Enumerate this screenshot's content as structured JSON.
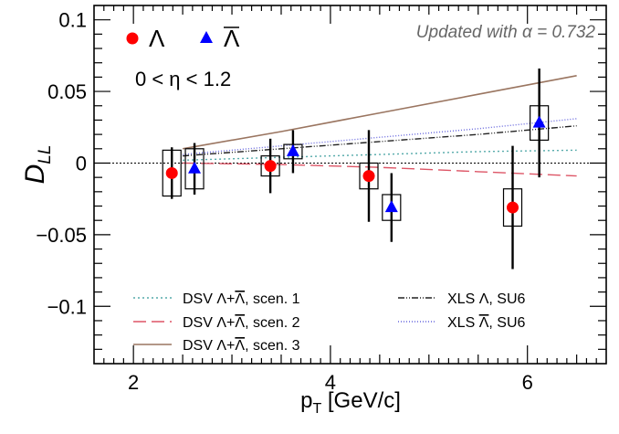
{
  "chart_data": {
    "type": "scatter",
    "title": "",
    "annotation": "Updated with α = 0.732",
    "eta_label": "0 < η < 1.2",
    "xlabel_main": "p",
    "xlabel_sub": "T",
    "xlabel_rest": " [GeV/c]",
    "ylabel_main": "D",
    "ylabel_sub": "LL",
    "xlim": [
      1.6,
      6.8
    ],
    "ylim": [
      -0.14,
      0.11
    ],
    "x_ticks": [
      2,
      4,
      6
    ],
    "x_tick_labels": [
      "2",
      "4",
      "6"
    ],
    "y_ticks": [
      -0.1,
      -0.05,
      0,
      0.05,
      0.1
    ],
    "y_tick_labels": [
      "−0.1",
      "−0.05",
      "0",
      "0.05",
      "0.1"
    ],
    "zero_line": true,
    "marker_legend": [
      {
        "symbol": "circle",
        "label": "Λ",
        "overline": false,
        "color": "#ff0000"
      },
      {
        "symbol": "triangle",
        "label": "Λ",
        "overline": true,
        "color": "#0000ff"
      }
    ],
    "series": [
      {
        "symbol": "circle",
        "color": "#ff0000",
        "x": [
          2.39,
          3.39,
          4.39,
          5.85
        ],
        "y": [
          -0.007,
          -0.002,
          -0.009,
          -0.031
        ],
        "stat_err": [
          0.018,
          0.019,
          0.032,
          0.043
        ],
        "sys_err": [
          0.016,
          0.007,
          0.009,
          0.013
        ]
      },
      {
        "symbol": "triangle",
        "color": "#0000ff",
        "x": [
          2.62,
          3.62,
          4.62,
          6.12
        ],
        "y": [
          -0.004,
          0.008,
          -0.031,
          0.028
        ],
        "stat_err": [
          0.018,
          0.015,
          0.024,
          0.038
        ],
        "sys_err": [
          0.014,
          0.005,
          0.009,
          0.012
        ]
      }
    ],
    "curves": [
      {
        "label": "DSV Λ+Λ, scen. 1",
        "color": "#55aaaa",
        "style": "dotted",
        "x": [
          2.5,
          3.5,
          4.5,
          5.5,
          6.5
        ],
        "y": [
          0.002,
          0.004,
          0.006,
          0.008,
          0.009
        ]
      },
      {
        "label": "DSV Λ+Λ, scen. 2",
        "color": "#dd5566",
        "style": "dashed",
        "x": [
          2.5,
          3.5,
          4.5,
          5.5,
          6.5
        ],
        "y": [
          0.0,
          -0.001,
          -0.003,
          -0.006,
          -0.009
        ]
      },
      {
        "label": "DSV Λ+Λ, scen. 3",
        "color": "#9a7560",
        "style": "solid",
        "x": [
          2.5,
          3.5,
          4.5,
          5.5,
          6.5
        ],
        "y": [
          0.01,
          0.022,
          0.035,
          0.048,
          0.061
        ]
      },
      {
        "label": "XLS Λ, SU6",
        "color": "#222222",
        "style": "dashdot",
        "x": [
          2.5,
          3.5,
          4.5,
          5.5,
          6.5
        ],
        "y": [
          0.005,
          0.01,
          0.015,
          0.02,
          0.026
        ]
      },
      {
        "label": "XLS Λ, SU6",
        "color": "#6666dd",
        "style": "finedot",
        "x": [
          2.5,
          3.5,
          4.5,
          5.5,
          6.5
        ],
        "y": [
          0.006,
          0.012,
          0.018,
          0.024,
          0.031
        ]
      }
    ],
    "curve_legend": [
      {
        "prefix": "DSV ",
        "lam": "Λ",
        "lam_over": false,
        "plus": "+",
        "lam2": "Λ",
        "lam2_over": true,
        "suffix": ", scen. 1",
        "curve": 0
      },
      {
        "prefix": "DSV ",
        "lam": "Λ",
        "lam_over": false,
        "plus": "+",
        "lam2": "Λ",
        "lam2_over": true,
        "suffix": ", scen. 2",
        "curve": 1
      },
      {
        "prefix": "DSV ",
        "lam": "Λ",
        "lam_over": false,
        "plus": "+",
        "lam2": "Λ",
        "lam2_over": true,
        "suffix": ", scen. 3",
        "curve": 2
      },
      {
        "prefix": "XLS ",
        "lam": "Λ",
        "lam_over": false,
        "plus": "",
        "lam2": "",
        "lam2_over": false,
        "suffix": ", SU6",
        "curve": 3
      },
      {
        "prefix": "XLS ",
        "lam": "Λ",
        "lam_over": true,
        "plus": "",
        "lam2": "",
        "lam2_over": false,
        "suffix": ", SU6",
        "curve": 4
      }
    ],
    "grid": false
  }
}
